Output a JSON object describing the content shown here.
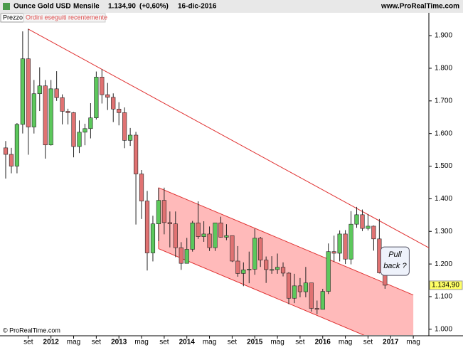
{
  "header": {
    "instrument": "Ounce Gold USD",
    "period": "Mensile",
    "price": "1.134,90",
    "change": "(+0,60%)",
    "date": "16-dic-2016",
    "site": "www.ProRealTime.com"
  },
  "tabs": [
    "Prezzo",
    "Ordini eseguiti recentemente"
  ],
  "footer": "© ProRealTime.com",
  "chart_data": {
    "type": "candlestick",
    "categories": [
      null,
      null,
      null,
      null,
      "set",
      null,
      null,
      null,
      "2012",
      null,
      null,
      null,
      "mag",
      null,
      null,
      null,
      "set",
      null,
      null,
      null,
      "2013",
      null,
      null,
      null,
      "mag",
      null,
      null,
      null,
      "set",
      null,
      null,
      null,
      "2014",
      null,
      null,
      null,
      "mag",
      null,
      null,
      null,
      "set",
      null,
      null,
      null,
      "2015",
      null,
      null,
      null,
      "mag",
      null,
      null,
      null,
      "set",
      null,
      null,
      null,
      "2016",
      null,
      null,
      null,
      "mag",
      null,
      null,
      null,
      "set",
      null,
      null,
      null,
      "2017",
      null,
      null,
      null,
      "mag"
    ],
    "open": [
      1556,
      1536,
      1500,
      1628,
      1829,
      1620,
      1722,
      1746,
      1565,
      1737,
      1710,
      1668,
      1664,
      1560,
      1604,
      1615,
      1648,
      1773,
      1719,
      1711,
      1675,
      1664,
      1579,
      1595,
      1476,
      1393,
      1234,
      1323,
      1395,
      1327,
      1323,
      1250,
      1202,
      1245,
      1326,
      1284,
      1292,
      1250,
      1326,
      1282,
      1287,
      1209,
      1171,
      1182,
      1184,
      1279,
      1212,
      1183,
      1183,
      1190,
      1172,
      1095,
      1133,
      1115,
      1142,
      1064,
      1061,
      1116,
      1238,
      1233,
      1292,
      1215,
      1322,
      1351,
      1309,
      1316,
      1277,
      1173,
      null,
      null,
      null,
      null,
      null
    ],
    "high": [
      1577,
      1556,
      1632,
      1913,
      1921,
      1764,
      1803,
      1764,
      1764,
      1791,
      1720,
      1676,
      1666,
      1640,
      1630,
      1693,
      1790,
      1797,
      1755,
      1723,
      1696,
      1680,
      1617,
      1605,
      1488,
      1424,
      1348,
      1433,
      1434,
      1361,
      1361,
      1267,
      1280,
      1332,
      1392,
      1331,
      1315,
      1326,
      1345,
      1322,
      1287,
      1255,
      1205,
      1238,
      1308,
      1283,
      1223,
      1224,
      1232,
      1205,
      1175,
      1170,
      1157,
      1191,
      1142,
      1088,
      1124,
      1263,
      1287,
      1303,
      1304,
      1362,
      1375,
      1367,
      1353,
      1318,
      1338,
      1181,
      null,
      null,
      null,
      null,
      null
    ],
    "low": [
      1462,
      1478,
      1478,
      1600,
      1535,
      1600,
      1669,
      1523,
      1563,
      1700,
      1628,
      1628,
      1527,
      1540,
      1564,
      1585,
      1643,
      1692,
      1672,
      1635,
      1625,
      1555,
      1562,
      1321,
      1338,
      1180,
      1208,
      1270,
      1291,
      1251,
      1221,
      1182,
      1202,
      1238,
      1277,
      1268,
      1240,
      1240,
      1281,
      1273,
      1206,
      1161,
      1132,
      1141,
      1167,
      1191,
      1142,
      1170,
      1170,
      1162,
      1077,
      1080,
      1098,
      1098,
      1054,
      1046,
      1061,
      1108,
      1207,
      1208,
      1200,
      1199,
      1311,
      1301,
      1303,
      1241,
      1171,
      1124,
      null,
      null,
      null,
      null,
      null
    ],
    "close": [
      1536,
      1500,
      1628,
      1829,
      1620,
      1722,
      1746,
      1565,
      1737,
      1710,
      1668,
      1664,
      1560,
      1604,
      1615,
      1648,
      1773,
      1719,
      1711,
      1675,
      1664,
      1579,
      1595,
      1476,
      1393,
      1234,
      1323,
      1395,
      1327,
      1323,
      1250,
      1202,
      1245,
      1326,
      1284,
      1292,
      1250,
      1326,
      1282,
      1287,
      1209,
      1171,
      1182,
      1184,
      1279,
      1212,
      1183,
      1183,
      1190,
      1172,
      1095,
      1133,
      1115,
      1142,
      1064,
      1061,
      1116,
      1238,
      1233,
      1292,
      1215,
      1322,
      1351,
      1309,
      1316,
      1277,
      1173,
      1135,
      null,
      null,
      null,
      null,
      null
    ],
    "up_color": "#5cc85c",
    "down_color": "#e07272",
    "ylim": [
      980,
      1970
    ],
    "yticks": [
      {
        "value": 1000,
        "label": "1.000"
      },
      {
        "value": 1100,
        "label": "1.100"
      },
      {
        "value": 1200,
        "label": "1.200"
      },
      {
        "value": 1300,
        "label": "1.300"
      },
      {
        "value": 1400,
        "label": "1.400"
      },
      {
        "value": 1500,
        "label": "1.500"
      },
      {
        "value": 1600,
        "label": "1.600"
      },
      {
        "value": 1700,
        "label": "1.700"
      },
      {
        "value": 1800,
        "label": "1.800"
      },
      {
        "value": 1900,
        "label": "1.900"
      }
    ],
    "last_price": {
      "value": 1134.9,
      "label": "1.134,90"
    },
    "resistance": {
      "x": [
        4,
        65
      ],
      "values": [
        1920,
        1342
      ],
      "color": "#e03030"
    },
    "channel": {
      "x": [
        27,
        72
      ],
      "upper": [
        1434,
        1105
      ],
      "lower": [
        1247,
        918
      ],
      "color": "#ffb3b3",
      "line_color": "#e03030"
    },
    "annotation": {
      "text": [
        "Pull",
        "back ?"
      ],
      "x": 65,
      "value": 1200
    }
  }
}
